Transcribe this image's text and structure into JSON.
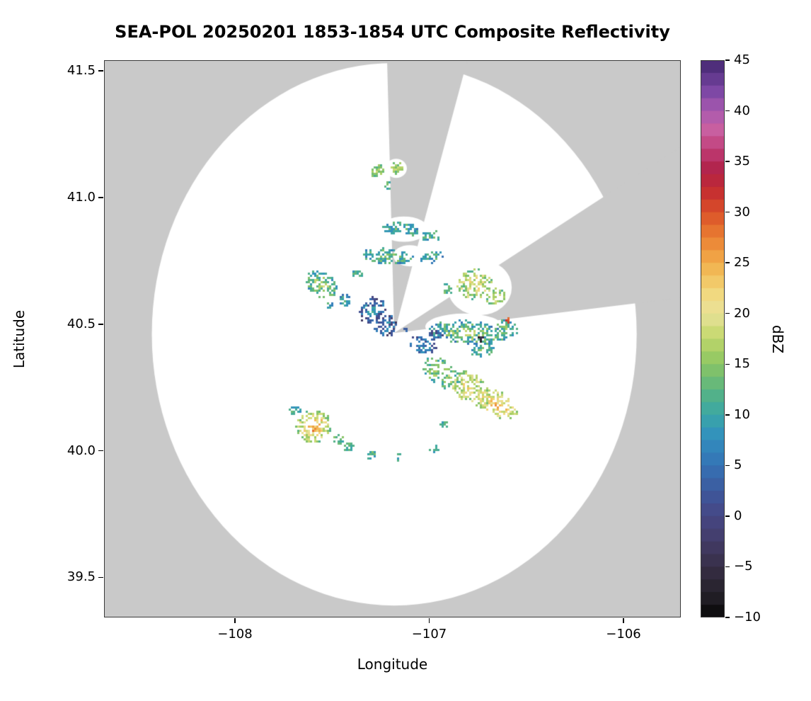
{
  "chart_data": {
    "type": "heatmap",
    "title": "SEA-POL 20250201 1853-1854 UTC Composite Reflectivity",
    "xlabel": "Longitude",
    "ylabel": "Latitude",
    "colorbar_label": "dBZ",
    "xlim": [
      -108.674,
      -105.705
    ],
    "ylim": [
      39.342,
      41.542
    ],
    "xticks": [
      -108,
      -107,
      -106
    ],
    "xtick_labels": [
      "−108",
      "−107",
      "−106"
    ],
    "yticks": [
      41.5,
      41.0,
      40.5,
      40.0,
      39.5
    ],
    "ytick_labels": [
      "41.5",
      "41.0",
      "40.5",
      "40.0",
      "39.5"
    ],
    "colorbar_range": [
      -10,
      45
    ],
    "colorbar_ticks": [
      45,
      40,
      35,
      30,
      25,
      20,
      15,
      10,
      5,
      0,
      -5,
      -10
    ],
    "colorbar_tick_labels": [
      "45",
      "40",
      "35",
      "30",
      "25",
      "20",
      "15",
      "10",
      "5",
      "0",
      "−5",
      "−10"
    ],
    "colorbar_step": 1.25,
    "grid": false,
    "legend_position": "right-colorbar",
    "colors": {
      "outside_mask": "#c9c9c9",
      "coverage": "#ffffff",
      "frame": "#3a3a3a",
      "text": "#000000"
    },
    "colormap_stops": [
      [
        -10,
        "#060606"
      ],
      [
        -8,
        "#221f26"
      ],
      [
        -6,
        "#31293a"
      ],
      [
        -4,
        "#3c3454"
      ],
      [
        -2,
        "#443e6e"
      ],
      [
        0,
        "#464784"
      ],
      [
        2,
        "#3f5598"
      ],
      [
        4,
        "#3868ac"
      ],
      [
        6,
        "#337dba"
      ],
      [
        8,
        "#3292bc"
      ],
      [
        10,
        "#3aa6a6"
      ],
      [
        12,
        "#54b288"
      ],
      [
        14,
        "#77bf6d"
      ],
      [
        16,
        "#a0cc62"
      ],
      [
        18,
        "#c9d972"
      ],
      [
        20,
        "#e9e29a"
      ],
      [
        22,
        "#f1d87e"
      ],
      [
        24,
        "#f2bd58"
      ],
      [
        26,
        "#ef9c40"
      ],
      [
        28,
        "#e77630"
      ],
      [
        30,
        "#da5028"
      ],
      [
        32,
        "#c62f31"
      ],
      [
        34,
        "#b02046"
      ],
      [
        36,
        "#bd3a72"
      ],
      [
        38,
        "#ca5f9f"
      ],
      [
        40,
        "#a95ab0"
      ],
      [
        42,
        "#7b47a4"
      ],
      [
        44,
        "#553183"
      ],
      [
        45,
        "#46296e"
      ]
    ],
    "coverage_circle": {
      "center": [
        -107.18,
        40.46
      ],
      "radius_lon_deg": 1.248,
      "radius_lat_deg": 1.071
    },
    "blocked_sectors": {
      "apex": [
        -107.18,
        40.465
      ],
      "sectors_azimuth_deg": [
        [
          -1.5,
          15
        ],
        [
          57,
          83
        ]
      ]
    },
    "data_islands_in_blocked_sectors": [
      [
        -106.74,
        40.645,
        0.165,
        0.11
      ],
      [
        -107.13,
        40.875,
        0.125,
        0.05
      ],
      [
        -107.1,
        40.77,
        0.085,
        0.042
      ],
      [
        -107.17,
        41.115,
        0.055,
        0.038
      ],
      [
        -106.82,
        40.49,
        0.2,
        0.052
      ]
    ],
    "echo_fields": [
      "lon",
      "lat",
      "rx_deg",
      "ry_deg",
      "rot_deg",
      "dbz_core",
      "dbz_edge_drop",
      "dbz_noise",
      "n_cells"
    ],
    "echoes": [
      [
        -107.27,
        41.11,
        0.035,
        0.025,
        0,
        17,
        4,
        3,
        40
      ],
      [
        -107.17,
        41.12,
        0.03,
        0.02,
        0,
        18,
        4,
        3,
        30
      ],
      [
        -107.21,
        41.05,
        0.02,
        0.015,
        0,
        14,
        3,
        3,
        12
      ],
      [
        -107.15,
        40.88,
        0.095,
        0.026,
        -5,
        13,
        4,
        4,
        80
      ],
      [
        -106.99,
        40.85,
        0.05,
        0.02,
        0,
        12,
        3,
        4,
        30
      ],
      [
        -107.22,
        40.77,
        0.13,
        0.03,
        -3,
        14,
        5,
        4,
        110
      ],
      [
        -106.99,
        40.77,
        0.06,
        0.022,
        5,
        12,
        4,
        4,
        35
      ],
      [
        -107.56,
        40.66,
        0.085,
        0.05,
        -20,
        17,
        7,
        4,
        120
      ],
      [
        -107.44,
        40.6,
        0.035,
        0.025,
        0,
        11,
        4,
        3,
        25
      ],
      [
        -107.52,
        40.58,
        0.02,
        0.015,
        0,
        11,
        3,
        3,
        10
      ],
      [
        -107.3,
        40.56,
        0.07,
        0.05,
        10,
        8,
        6,
        5,
        90
      ],
      [
        -107.23,
        40.5,
        0.06,
        0.04,
        0,
        7,
        6,
        5,
        70
      ],
      [
        -107.37,
        40.7,
        0.03,
        0.02,
        0,
        12,
        3,
        3,
        18
      ],
      [
        -106.77,
        40.66,
        0.09,
        0.06,
        0,
        20,
        5,
        5,
        130
      ],
      [
        -106.66,
        40.61,
        0.05,
        0.035,
        0,
        18,
        4,
        3,
        45
      ],
      [
        -106.91,
        40.64,
        0.025,
        0.02,
        0,
        14,
        3,
        3,
        15
      ],
      [
        -106.8,
        40.47,
        0.2,
        0.045,
        -4,
        16,
        7,
        5,
        260
      ],
      [
        -106.6,
        40.49,
        0.06,
        0.03,
        -15,
        15,
        5,
        4,
        45
      ],
      [
        -106.97,
        40.46,
        0.035,
        0.02,
        0,
        6,
        4,
        5,
        25
      ],
      [
        -107.04,
        40.42,
        0.07,
        0.03,
        -10,
        8,
        5,
        4,
        55
      ],
      [
        -106.73,
        40.4,
        0.06,
        0.025,
        0,
        14,
        4,
        3,
        35
      ],
      [
        -106.94,
        40.31,
        0.1,
        0.05,
        -25,
        17,
        5,
        4,
        110
      ],
      [
        -106.8,
        40.25,
        0.12,
        0.06,
        -25,
        21,
        6,
        4,
        160
      ],
      [
        -106.66,
        40.19,
        0.11,
        0.05,
        -20,
        25,
        8,
        4,
        140
      ],
      [
        -107.6,
        40.1,
        0.09,
        0.065,
        10,
        27,
        12,
        4,
        160
      ],
      [
        -107.7,
        40.16,
        0.03,
        0.02,
        0,
        13,
        3,
        3,
        15
      ],
      [
        -107.47,
        40.05,
        0.03,
        0.02,
        0,
        15,
        3,
        3,
        18
      ],
      [
        -107.42,
        40.02,
        0.03,
        0.02,
        0,
        14,
        3,
        3,
        18
      ],
      [
        -107.3,
        39.99,
        0.025,
        0.018,
        0,
        13,
        3,
        3,
        14
      ],
      [
        -107.17,
        39.98,
        0.02,
        0.015,
        0,
        12,
        3,
        3,
        12
      ],
      [
        -106.98,
        40.01,
        0.022,
        0.016,
        0,
        13,
        3,
        3,
        12
      ],
      [
        -106.93,
        40.11,
        0.022,
        0.016,
        0,
        13,
        3,
        3,
        10
      ],
      [
        -106.74,
        40.45,
        0.013,
        0.013,
        0,
        -6,
        0,
        2,
        7
      ],
      [
        -106.6,
        40.52,
        0.01,
        0.01,
        0,
        30,
        0,
        2,
        5
      ],
      [
        -107.2,
        40.47,
        0.012,
        0.01,
        0,
        1,
        0,
        2,
        6
      ],
      [
        -107.12,
        40.48,
        0.01,
        0.01,
        0,
        3,
        0,
        2,
        5
      ]
    ]
  }
}
